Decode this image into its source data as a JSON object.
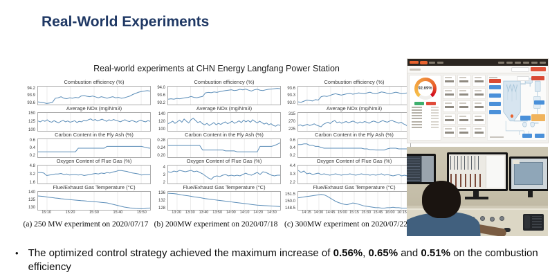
{
  "title": "Real-World Experiments",
  "subtitle": "Real-world experiments at CHN Energy Langfang Power Station",
  "bullet": {
    "lead": "The optimized control strategy achieved the maximum increase of ",
    "v1": "0.56%",
    "s1": ", ",
    "v2": "0.65%",
    "s2": " and ",
    "v3": "0.51%",
    "tail": " on the combustion efficiency"
  },
  "dashboard": {
    "gauge_value": "92.69%"
  },
  "colors": {
    "title_navy": "#1f3864",
    "plot_line": "#5b8db8",
    "dashboard_accent": "#e8622d",
    "gauge_red": "#d0021b",
    "button_green": "#3faf6e",
    "button_red": "#e04b3a",
    "tag_blue": "#4a90d9",
    "tag_orange": "#f0b35c"
  },
  "chart_data": [
    {
      "type": "line",
      "caption": "(a) 250 MW experiment on 2020/07/17",
      "xticklabels": [
        "15:10",
        "15:20",
        "15:30",
        "15:40",
        "15:50"
      ],
      "subplots": [
        {
          "title": "Combustion efficiency (%)",
          "ylim": [
            93.5,
            94.3
          ],
          "yticks": [
            "93.6",
            "93.9",
            "94.2"
          ],
          "values": [
            93.62,
            93.6,
            93.58,
            93.55,
            93.57,
            93.6,
            93.78,
            93.8,
            93.85,
            93.78,
            93.76,
            93.8,
            93.78,
            93.82,
            93.8,
            93.88,
            93.9,
            93.87,
            93.85,
            93.88,
            93.84,
            93.8,
            93.85,
            93.82,
            93.78,
            93.82,
            93.85,
            93.8,
            93.82,
            93.78,
            93.8,
            93.84,
            93.88,
            93.95,
            94.0,
            94.05,
            94.08,
            94.1,
            94.12,
            94.1
          ]
        },
        {
          "title": "Average NOx (mg/Nm3)",
          "ylim": [
            95,
            155
          ],
          "yticks": [
            "100",
            "125",
            "150"
          ],
          "values": [
            128,
            125,
            130,
            127,
            132,
            126,
            124,
            129,
            125,
            122,
            127,
            130,
            125,
            128,
            124,
            126,
            129,
            123,
            127,
            125,
            130,
            128,
            132,
            135,
            130,
            133,
            128,
            131,
            134,
            130,
            127,
            132,
            129,
            133,
            130,
            128,
            125,
            129,
            132,
            128,
            126,
            130,
            127,
            124,
            128,
            131,
            127,
            125,
            129,
            127
          ]
        },
        {
          "title": "Carbon Content in the Fly Ash (%)",
          "ylim": [
            0.15,
            0.65
          ],
          "yticks": [
            "0.2",
            "0.4",
            "0.6"
          ],
          "values": [
            0.3,
            0.3,
            0.3,
            0.3,
            0.3,
            0.3,
            0.3,
            0.3,
            0.3,
            0.3,
            0.3,
            0.3,
            0.3,
            0.3,
            0.4,
            0.4,
            0.4,
            0.4,
            0.4,
            0.4,
            0.4,
            0.4,
            0.4,
            0.4,
            0.45,
            0.45,
            0.45,
            0.45,
            0.45,
            0.45,
            0.45,
            0.45,
            0.45,
            0.45,
            0.45,
            0.45,
            0.45,
            0.43,
            0.41,
            0.4
          ]
        },
        {
          "title": "Oxygen Content of Flue Gas (%)",
          "ylim": [
            1.4,
            5.0
          ],
          "yticks": [
            "1.6",
            "3.2",
            "4.8"
          ],
          "values": [
            3.6,
            3.6,
            3.5,
            3.0,
            3.1,
            3.2,
            3.3,
            3.3,
            3.4,
            3.2,
            3.3,
            3.1,
            3.2,
            3.2,
            3.1,
            3.2,
            3.0,
            3.1,
            3.2,
            3.3,
            3.4,
            3.3,
            3.5,
            3.4,
            3.6,
            3.5,
            3.7,
            3.8,
            4.0,
            4.0,
            3.9,
            3.8,
            3.6,
            3.5,
            3.4,
            3.3,
            3.1,
            3.2,
            3.2,
            3.2
          ]
        },
        {
          "title": "Flue/Exhaust Gas Temperature (°C)",
          "ylim": [
            128,
            141
          ],
          "yticks": [
            "130",
            "135",
            "140"
          ],
          "values": [
            138.0,
            137.8,
            137.6,
            137.3,
            137.0,
            136.8,
            136.5,
            136.3,
            136.0,
            135.8,
            135.6,
            135.4,
            135.2,
            135.0,
            134.8,
            134.6,
            134.5,
            134.3,
            134.2,
            134.0,
            133.8,
            133.6,
            133.4,
            133.2,
            133.0,
            132.5,
            132.0,
            131.5,
            131.0,
            130.5,
            130.0,
            129.7,
            129.4,
            129.2,
            129.0,
            128.9,
            128.8,
            128.9,
            129.2,
            129.3
          ]
        }
      ]
    },
    {
      "type": "line",
      "caption": "(b) 200MW experiment on 2020/07/18",
      "xticklabels": [
        "13:20",
        "13:30",
        "13:40",
        "13:50",
        "14:00",
        "14:10",
        "14:20",
        "14:30"
      ],
      "subplots": [
        {
          "title": "Combustion efficiency (%)",
          "ylim": [
            93.1,
            94.1
          ],
          "yticks": [
            "93.2",
            "93.6",
            "94.0"
          ],
          "values": [
            93.4,
            93.42,
            93.4,
            93.44,
            93.42,
            93.45,
            93.48,
            93.5,
            93.55,
            93.5,
            93.48,
            93.52,
            93.55,
            93.75,
            93.78,
            93.76,
            93.8,
            93.78,
            93.82,
            93.85,
            93.88,
            93.9,
            93.92,
            93.88,
            93.9,
            93.95,
            93.92,
            93.96,
            93.9,
            93.85,
            93.92,
            93.95,
            93.9,
            93.88,
            93.92,
            93.95,
            93.96,
            93.98,
            94.0,
            93.98
          ]
        },
        {
          "title": "Average NOx (mg/Nm3)",
          "ylim": [
            95,
            145
          ],
          "yticks": [
            "100",
            "120",
            "140"
          ],
          "values": [
            115,
            118,
            122,
            116,
            120,
            125,
            119,
            128,
            122,
            117,
            126,
            130,
            124,
            118,
            121,
            115,
            112,
            116,
            110,
            114,
            118,
            112,
            116,
            113,
            117,
            120,
            115,
            118,
            122,
            116,
            119,
            123,
            118,
            125,
            120,
            124,
            119,
            126,
            121,
            117,
            122,
            118,
            114,
            117,
            112,
            115,
            110,
            108,
            112,
            110
          ]
        },
        {
          "title": "Carbon Content in the Fly Ash (%)",
          "ylim": [
            0.19,
            0.29
          ],
          "yticks": [
            "0.20",
            "0.24",
            "0.28"
          ],
          "values": [
            0.255,
            0.255,
            0.255,
            0.255,
            0.255,
            0.255,
            0.255,
            0.255,
            0.255,
            0.255,
            0.255,
            0.255,
            0.23,
            0.23,
            0.23,
            0.23,
            0.23,
            0.23,
            0.23,
            0.23,
            0.225,
            0.225,
            0.225,
            0.225,
            0.22,
            0.22,
            0.22,
            0.22,
            0.22,
            0.22,
            0.22,
            0.22,
            0.25,
            0.25,
            0.25,
            0.25,
            0.25,
            0.255,
            0.262,
            0.27
          ]
        },
        {
          "title": "Oxygen Content of Flue Gas (%)",
          "ylim": [
            1.8,
            4.4
          ],
          "yticks": [
            "2",
            "3",
            "4"
          ],
          "values": [
            3.5,
            3.4,
            3.6,
            3.5,
            3.7,
            3.6,
            3.5,
            3.6,
            3.7,
            3.5,
            3.6,
            3.4,
            3.2,
            2.9,
            2.6,
            2.4,
            2.8,
            2.9,
            2.8,
            3.0,
            3.1,
            2.9,
            3.0,
            2.9,
            3.0,
            2.9,
            3.1,
            3.3,
            3.1,
            3.0,
            3.2,
            3.4,
            3.1,
            3.5,
            3.4,
            3.2,
            3.0,
            2.9,
            3.0,
            3.0
          ]
        },
        {
          "title": "Flue/Exhaust Gas Temperature (°C)",
          "ylim": [
            127,
            137
          ],
          "yticks": [
            "128",
            "132",
            "136"
          ],
          "values": [
            136.2,
            136.1,
            136.0,
            135.8,
            135.5,
            135.2,
            135.0,
            134.8,
            134.5,
            134.2,
            134.0,
            133.8,
            133.5,
            133.2,
            133.0,
            132.8,
            132.6,
            132.4,
            132.2,
            132.0,
            131.8,
            131.6,
            131.4,
            131.2,
            131.0,
            130.8,
            130.6,
            130.4,
            130.2,
            130.0,
            129.8,
            129.6,
            129.5,
            129.4,
            129.3,
            129.2,
            129.1,
            129.0,
            128.9,
            128.8
          ]
        }
      ]
    },
    {
      "type": "line",
      "caption": "(c) 300MW experiment on 2020/07/22",
      "xticklabels": [
        "14:15",
        "14:30",
        "14:45",
        "15:00",
        "15:15",
        "15:30",
        "15:45",
        "16:00",
        "16:15"
      ],
      "subplots": [
        {
          "title": "Combustion efficiency (%)",
          "ylim": [
            92.9,
            93.7
          ],
          "yticks": [
            "93.0",
            "93.3",
            "93.6"
          ],
          "values": [
            93.02,
            93.0,
            93.05,
            93.1,
            93.08,
            93.06,
            93.12,
            93.1,
            93.25,
            93.28,
            93.26,
            93.3,
            93.35,
            93.38,
            93.35,
            93.32,
            93.35,
            93.38,
            93.4,
            93.36,
            93.38,
            93.42,
            93.4,
            93.38,
            93.42,
            93.45,
            93.4,
            93.38,
            93.42,
            93.46,
            93.44,
            93.4,
            93.38,
            93.42,
            93.45,
            93.42,
            93.38,
            93.4,
            93.42,
            93.45
          ]
        },
        {
          "title": "Average NOx (mg/Nm3)",
          "ylim": [
            215,
            325
          ],
          "yticks": [
            "225",
            "270",
            "315"
          ],
          "values": [
            248,
            252,
            245,
            250,
            255,
            248,
            252,
            258,
            250,
            245,
            240,
            255,
            262,
            268,
            260,
            272,
            278,
            265,
            270,
            262,
            268,
            272,
            265,
            270,
            275,
            268,
            262,
            270,
            265,
            272,
            268,
            262,
            270,
            275,
            270,
            265,
            272,
            278,
            272,
            268,
            275,
            280,
            272,
            268,
            262,
            268,
            258,
            252,
            240,
            235
          ]
        },
        {
          "title": "Carbon Content in the Fly Ash (%)",
          "ylim": [
            0.15,
            0.65
          ],
          "yticks": [
            "0.2",
            "0.4",
            "0.6"
          ],
          "values": [
            0.5,
            0.5,
            0.52,
            0.52,
            0.48,
            0.48,
            0.45,
            0.45,
            0.42,
            0.4,
            0.4,
            0.4,
            0.4,
            0.4,
            0.4,
            0.4,
            0.4,
            0.4,
            0.4,
            0.4,
            0.4,
            0.4,
            0.4,
            0.38,
            0.38,
            0.36,
            0.36,
            0.35,
            0.35,
            0.35,
            0.35,
            0.38,
            0.4,
            0.4,
            0.4,
            0.38,
            0.38,
            0.38,
            0.38,
            0.38
          ]
        },
        {
          "title": "Oxygen Content of Flue Gas (%)",
          "ylim": [
            2.0,
            4.6
          ],
          "yticks": [
            "2.2",
            "3.3",
            "4.4"
          ],
          "values": [
            3.9,
            3.6,
            3.8,
            3.4,
            3.5,
            3.3,
            3.4,
            3.5,
            3.3,
            3.4,
            3.3,
            3.2,
            3.3,
            3.4,
            3.3,
            3.2,
            3.3,
            3.3,
            3.4,
            3.3,
            3.2,
            3.3,
            3.4,
            3.3,
            3.3,
            3.2,
            3.3,
            3.2,
            3.3,
            3.4,
            3.2,
            3.3,
            3.2,
            3.1,
            3.2,
            3.3,
            3.1,
            3.2,
            3.1,
            3.0
          ]
        },
        {
          "title": "Flue/Exhaust Gas Temperature (°C)",
          "ylim": [
            148,
            152.2
          ],
          "yticks": [
            "148.5",
            "150.0",
            "151.5"
          ],
          "values": [
            150.8,
            150.9,
            151.0,
            151.1,
            151.2,
            151.3,
            151.4,
            151.5,
            151.6,
            151.5,
            151.2,
            150.8,
            150.4,
            150.0,
            149.7,
            149.5,
            149.3,
            149.2,
            149.4,
            149.6,
            149.5,
            149.3,
            149.1,
            148.9,
            148.8,
            148.7,
            148.6,
            148.5,
            148.5,
            148.4,
            148.4,
            148.5,
            148.5,
            148.6,
            148.5,
            148.5,
            148.4,
            148.4,
            148.4,
            148.4
          ]
        }
      ]
    }
  ]
}
